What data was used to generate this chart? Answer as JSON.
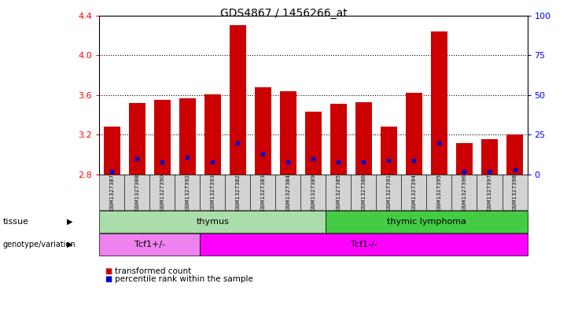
{
  "title": "GDS4867 / 1456266_at",
  "samples": [
    "GSM1327387",
    "GSM1327388",
    "GSM1327390",
    "GSM1327392",
    "GSM1327393",
    "GSM1327382",
    "GSM1327383",
    "GSM1327384",
    "GSM1327389",
    "GSM1327385",
    "GSM1327386",
    "GSM1327391",
    "GSM1327394",
    "GSM1327395",
    "GSM1327396",
    "GSM1327397",
    "GSM1327398"
  ],
  "transformed_counts": [
    3.28,
    3.52,
    3.55,
    3.57,
    3.61,
    4.3,
    3.68,
    3.64,
    3.43,
    3.51,
    3.53,
    3.28,
    3.62,
    4.24,
    3.12,
    3.16,
    3.2
  ],
  "percentile_ranks": [
    2,
    10,
    8,
    11,
    8,
    20,
    13,
    8,
    10,
    8,
    8,
    9,
    9,
    20,
    2,
    2,
    3
  ],
  "baseline": 2.8,
  "ylim_left": [
    2.8,
    4.4
  ],
  "ylim_right": [
    0,
    100
  ],
  "yticks_left": [
    2.8,
    3.2,
    3.6,
    4.0,
    4.4
  ],
  "yticks_right": [
    0,
    25,
    50,
    75,
    100
  ],
  "bar_color": "#cc0000",
  "dot_color": "#0000cc",
  "tissue_thymus_count": 9,
  "tissue_lymphoma_count": 8,
  "genotype_tcf1_plus_count": 4,
  "genotype_tcf1_minus_count": 13,
  "tissue_thymus_label": "thymus",
  "tissue_lymphoma_label": "thymic lymphoma",
  "genotype1_label": "Tcf1+/-",
  "genotype2_label": "Tcf1-/-",
  "tissue_row_label": "tissue",
  "genotype_row_label": "genotype/variation",
  "legend1": "transformed count",
  "legend2": "percentile rank within the sample",
  "label_area_color": "#d3d3d3",
  "thymus_color": "#aaddaa",
  "lymphoma_color": "#44cc44",
  "tcf1plus_color": "#ee82ee",
  "tcf1minus_color": "#ff00ff"
}
